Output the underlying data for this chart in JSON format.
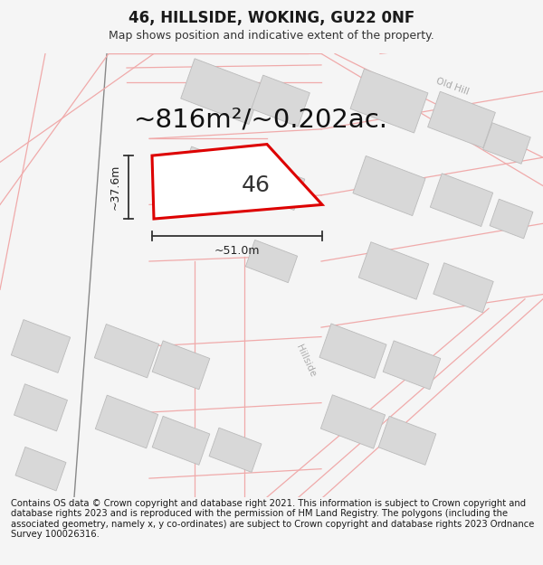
{
  "title": "46, HILLSIDE, WOKING, GU22 0NF",
  "subtitle": "Map shows position and indicative extent of the property.",
  "area_text": "~816m²/~0.202ac.",
  "label_46": "46",
  "dim_width": "~51.0m",
  "dim_height": "~37.6m",
  "footer": "Contains OS data © Crown copyright and database right 2021. This information is subject to Crown copyright and database rights 2023 and is reproduced with the permission of HM Land Registry. The polygons (including the associated geometry, namely x, y co-ordinates) are subject to Crown copyright and database rights 2023 Ordnance Survey 100026316.",
  "bg_color": "#f5f5f5",
  "map_bg": "#ffffff",
  "plot_color": "#dd0000",
  "road_stroke": "#f0aaaa",
  "building_fill": "#d8d8d8",
  "building_edge": "#bbbbbb",
  "road_label_color": "#aaaaaa",
  "title_fontsize": 12,
  "subtitle_fontsize": 9,
  "area_fontsize": 21,
  "label_fontsize": 18,
  "footer_fontsize": 7.2,
  "dim_fontsize": 9
}
